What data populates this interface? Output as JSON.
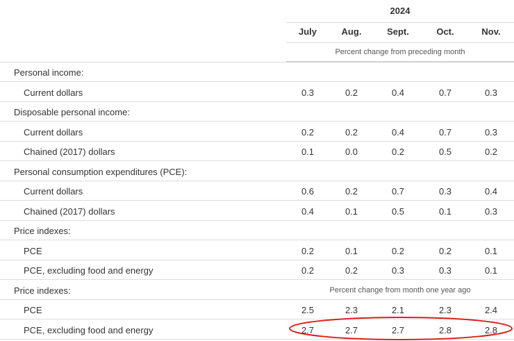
{
  "header": {
    "year": "2024",
    "months": [
      "July",
      "Aug.",
      "Sept.",
      "Oct.",
      "Nov."
    ],
    "subheading": "Percent change from preceding month"
  },
  "rows": [
    {
      "label": "Personal income:",
      "indent": false,
      "values": []
    },
    {
      "label": "Current dollars",
      "indent": true,
      "values": [
        "0.3",
        "0.2",
        "0.4",
        "0.7",
        "0.3"
      ]
    },
    {
      "label": "Disposable personal income:",
      "indent": false,
      "values": []
    },
    {
      "label": "Current dollars",
      "indent": true,
      "values": [
        "0.2",
        "0.2",
        "0.4",
        "0.7",
        "0.3"
      ]
    },
    {
      "label": "Chained (2017) dollars",
      "indent": true,
      "values": [
        "0.1",
        "0.0",
        "0.2",
        "0.5",
        "0.2"
      ]
    },
    {
      "label": "Personal consumption expenditures (PCE):",
      "indent": false,
      "values": []
    },
    {
      "label": "Current dollars",
      "indent": true,
      "values": [
        "0.6",
        "0.2",
        "0.7",
        "0.3",
        "0.4"
      ]
    },
    {
      "label": "Chained (2017) dollars",
      "indent": true,
      "values": [
        "0.4",
        "0.1",
        "0.5",
        "0.1",
        "0.3"
      ]
    },
    {
      "label": "Price indexes:",
      "indent": false,
      "values": []
    },
    {
      "label": "PCE",
      "indent": true,
      "values": [
        "0.2",
        "0.1",
        "0.2",
        "0.2",
        "0.1"
      ]
    },
    {
      "label": "PCE, excluding food and energy",
      "indent": true,
      "values": [
        "0.2",
        "0.2",
        "0.3",
        "0.3",
        "0.1"
      ]
    },
    {
      "label": "Price indexes:",
      "indent": false,
      "values": [],
      "subheading": "Percent change from month one year ago"
    },
    {
      "label": "PCE",
      "indent": true,
      "values": [
        "2.5",
        "2.3",
        "2.1",
        "2.3",
        "2.4"
      ]
    },
    {
      "label": "PCE, excluding food and energy",
      "indent": true,
      "values": [
        "2.7",
        "2.7",
        "2.7",
        "2.8",
        "2.8"
      ],
      "highlighted": true
    }
  ],
  "colors": {
    "highlight": "#d9211c",
    "rule": "#dcdcdc",
    "text": "#333333"
  }
}
